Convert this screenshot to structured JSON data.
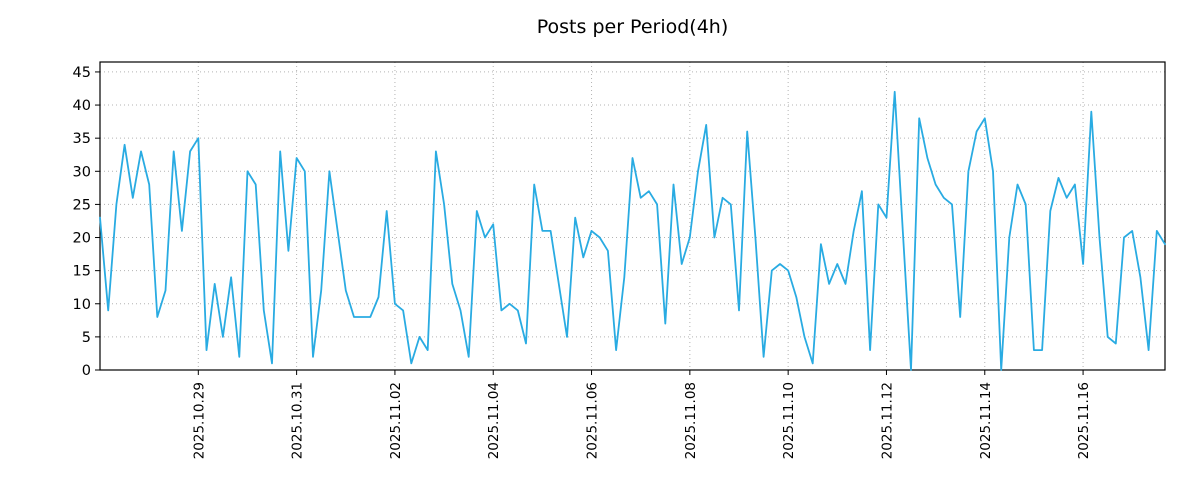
{
  "title": "Posts per Period(4h)",
  "colors": {
    "line": "#29abe2",
    "grid": "#b3b3b3",
    "axis": "#000000",
    "background": "#ffffff"
  },
  "chart_data": {
    "type": "line",
    "title": "Posts per Period(4h)",
    "xlabel": "",
    "ylabel": "",
    "grid": true,
    "grid_style": "dotted",
    "legend": "none",
    "period_hours": 4,
    "ylim": [
      0,
      46.5
    ],
    "y_ticks": [
      0,
      5,
      10,
      15,
      20,
      25,
      30,
      35,
      40,
      45
    ],
    "x_tick_labels": [
      "2025.10.29",
      "2025.10.31",
      "2025.11.02",
      "2025.11.04",
      "2025.11.06",
      "2025.11.08",
      "2025.11.10",
      "2025.11.12",
      "2025.11.14",
      "2025.11.16"
    ],
    "x_tick_indices": [
      12,
      24,
      36,
      48,
      60,
      72,
      84,
      96,
      108,
      120
    ],
    "series": [
      {
        "name": "posts",
        "color": "#29abe2",
        "values": [
          23,
          9,
          25,
          34,
          26,
          33,
          28,
          8,
          12,
          33,
          21,
          33,
          35,
          3,
          13,
          5,
          14,
          2,
          30,
          28,
          9,
          1,
          33,
          18,
          32,
          30,
          2,
          12,
          30,
          21,
          12,
          8,
          8,
          8,
          11,
          24,
          10,
          9,
          1,
          5,
          3,
          33,
          25,
          13,
          9,
          2,
          24,
          20,
          22,
          9,
          10,
          9,
          4,
          28,
          21,
          21,
          13,
          5,
          23,
          17,
          21,
          20,
          18,
          3,
          14,
          32,
          26,
          27,
          25,
          7,
          28,
          16,
          20,
          30,
          37,
          20,
          26,
          25,
          9,
          36,
          20,
          2,
          15,
          16,
          15,
          11,
          5,
          1,
          19,
          13,
          16,
          13,
          21,
          27,
          3,
          25,
          23,
          42,
          21,
          0,
          38,
          32,
          28,
          26,
          25,
          8,
          30,
          36,
          38,
          30,
          0,
          20,
          28,
          25,
          3,
          3,
          24,
          29,
          26,
          28,
          16,
          39,
          20,
          5,
          4,
          20,
          21,
          14,
          3,
          21,
          19
        ]
      }
    ]
  }
}
